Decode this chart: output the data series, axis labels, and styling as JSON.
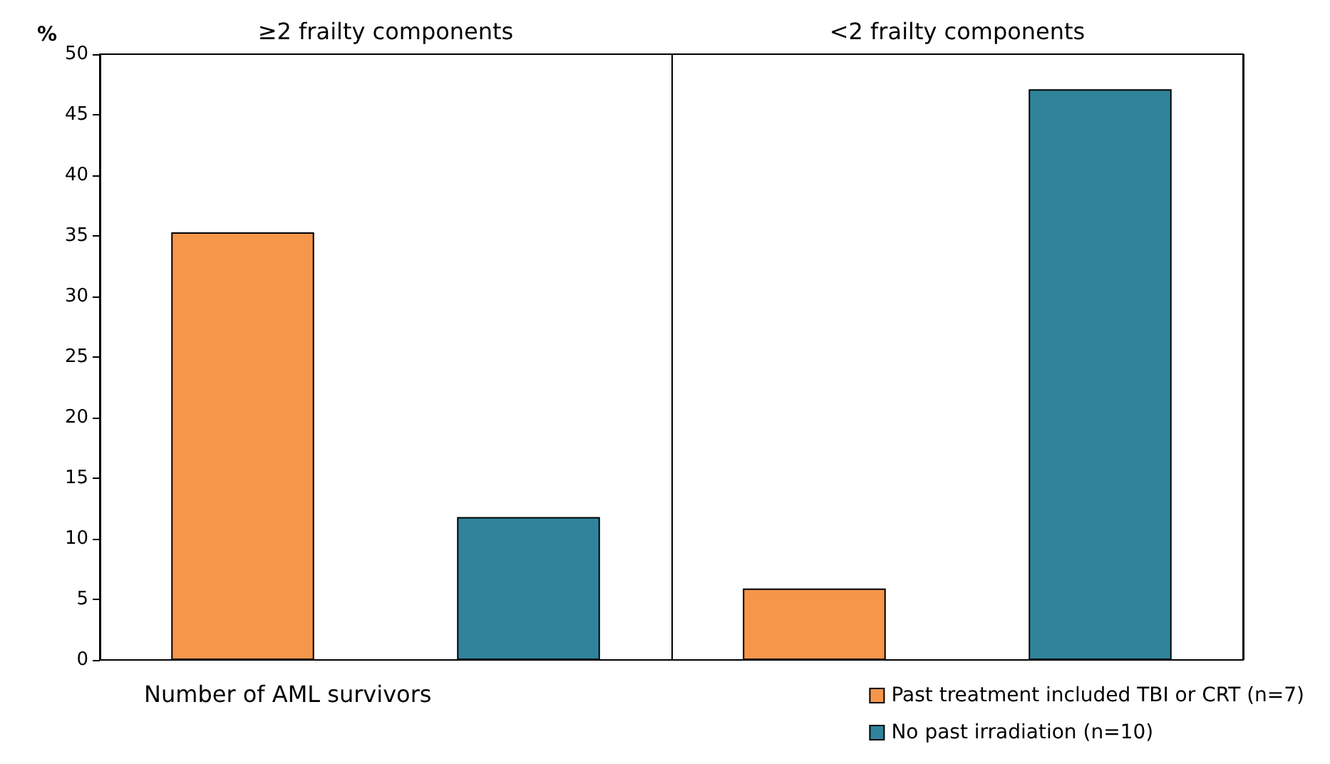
{
  "chart_data": {
    "type": "bar",
    "xlabel": "Number of AML survivors",
    "ylabel": "%",
    "categories": [
      "≥2 frailty components",
      "<2 frailty components"
    ],
    "series": [
      {
        "name": "Past treatment included TBI or CRT (n=7)",
        "color": "#f5964b",
        "values": [
          35.3,
          5.9
        ]
      },
      {
        "name": "No past irradiation (n=10)",
        "color": "#2f849b",
        "values": [
          11.8,
          47.1
        ]
      }
    ],
    "ylim": [
      0,
      50
    ],
    "yticks": [
      0,
      5,
      10,
      15,
      20,
      25,
      30,
      35,
      40,
      45,
      50
    ],
    "grid": "x",
    "legend": "bottom right"
  }
}
